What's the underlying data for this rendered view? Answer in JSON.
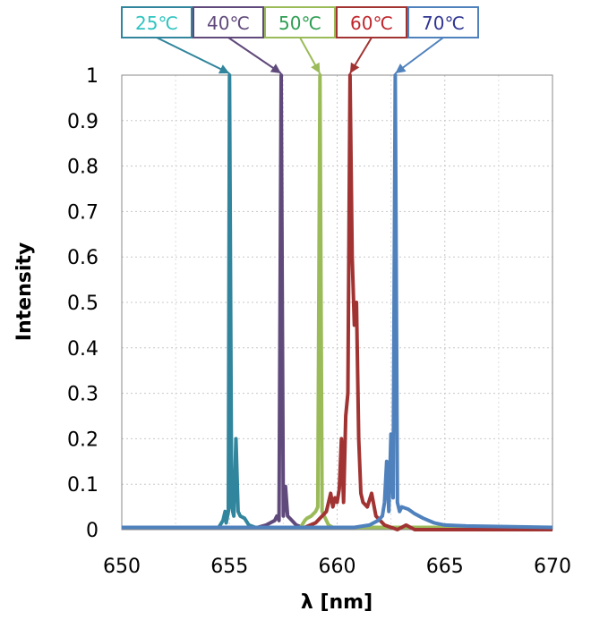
{
  "chart_data": {
    "type": "line",
    "xlabel": "λ [nm]",
    "ylabel": "Intensity",
    "xlim": [
      650,
      670
    ],
    "ylim": [
      0,
      1
    ],
    "x_ticks": [
      "650",
      "655",
      "660",
      "665",
      "670"
    ],
    "y_ticks": [
      "0",
      "0.1",
      "0.2",
      "0.3",
      "0.4",
      "0.5",
      "0.6",
      "0.7",
      "0.8",
      "0.9",
      "1"
    ],
    "grid": "dashed",
    "series": [
      {
        "name": "25℃",
        "color": "#31859c",
        "label_color": "#2fc4c0",
        "peak_wavelength": 655.0,
        "points": [
          [
            650,
            0.005
          ],
          [
            654.5,
            0.005
          ],
          [
            654.7,
            0.02
          ],
          [
            654.8,
            0.04
          ],
          [
            654.85,
            0.015
          ],
          [
            654.95,
            0.04
          ],
          [
            655.0,
            1.0
          ],
          [
            655.1,
            0.05
          ],
          [
            655.2,
            0.03
          ],
          [
            655.3,
            0.2
          ],
          [
            655.4,
            0.04
          ],
          [
            655.5,
            0.03
          ],
          [
            655.7,
            0.025
          ],
          [
            655.9,
            0.01
          ],
          [
            656.2,
            0.005
          ],
          [
            670,
            0.005
          ]
        ]
      },
      {
        "name": "40℃",
        "color": "#604a7b",
        "label_color": "#604a7b",
        "peak_wavelength": 657.4,
        "points": [
          [
            650,
            0.005
          ],
          [
            656.3,
            0.005
          ],
          [
            656.7,
            0.01
          ],
          [
            656.9,
            0.015
          ],
          [
            657.1,
            0.02
          ],
          [
            657.2,
            0.03
          ],
          [
            657.3,
            0.02
          ],
          [
            657.4,
            1.0
          ],
          [
            657.5,
            0.03
          ],
          [
            657.6,
            0.095
          ],
          [
            657.7,
            0.03
          ],
          [
            657.9,
            0.02
          ],
          [
            658.1,
            0.01
          ],
          [
            658.4,
            0.005
          ],
          [
            670,
            0.005
          ]
        ]
      },
      {
        "name": "50℃",
        "color": "#9bbb59",
        "label_color": "#2e9e53",
        "peak_wavelength": 659.2,
        "points": [
          [
            650,
            0.005
          ],
          [
            658.3,
            0.005
          ],
          [
            658.5,
            0.02
          ],
          [
            658.6,
            0.025
          ],
          [
            658.8,
            0.03
          ],
          [
            659.0,
            0.04
          ],
          [
            659.1,
            0.05
          ],
          [
            659.2,
            1.0
          ],
          [
            659.3,
            0.04
          ],
          [
            659.4,
            0.03
          ],
          [
            659.6,
            0.01
          ],
          [
            659.8,
            0.005
          ],
          [
            670,
            0.005
          ]
        ]
      },
      {
        "name": "60℃",
        "color": "#a13432",
        "label_color": "#c0262d",
        "peak_wavelength": 660.6,
        "points": [
          [
            650,
            0.005
          ],
          [
            658.5,
            0.005
          ],
          [
            659.0,
            0.015
          ],
          [
            659.5,
            0.04
          ],
          [
            659.7,
            0.08
          ],
          [
            659.8,
            0.05
          ],
          [
            659.9,
            0.07
          ],
          [
            660.0,
            0.06
          ],
          [
            660.1,
            0.09
          ],
          [
            660.2,
            0.2
          ],
          [
            660.3,
            0.06
          ],
          [
            660.4,
            0.25
          ],
          [
            660.5,
            0.3
          ],
          [
            660.6,
            1.0
          ],
          [
            660.7,
            0.6
          ],
          [
            660.8,
            0.45
          ],
          [
            660.9,
            0.5
          ],
          [
            661.0,
            0.2
          ],
          [
            661.1,
            0.08
          ],
          [
            661.2,
            0.06
          ],
          [
            661.4,
            0.05
          ],
          [
            661.6,
            0.08
          ],
          [
            661.8,
            0.03
          ],
          [
            662.2,
            0.01
          ],
          [
            662.8,
            0.0
          ],
          [
            663.2,
            0.01
          ],
          [
            663.6,
            0.0
          ],
          [
            670,
            0.0
          ]
        ]
      },
      {
        "name": "70℃",
        "color": "#4f81bd",
        "label_color": "#2f3592",
        "peak_wavelength": 662.7,
        "points": [
          [
            650,
            0.005
          ],
          [
            660.8,
            0.005
          ],
          [
            661.5,
            0.01
          ],
          [
            661.9,
            0.02
          ],
          [
            662.1,
            0.03
          ],
          [
            662.2,
            0.06
          ],
          [
            662.3,
            0.15
          ],
          [
            662.4,
            0.04
          ],
          [
            662.5,
            0.21
          ],
          [
            662.6,
            0.07
          ],
          [
            662.7,
            1.0
          ],
          [
            662.8,
            0.06
          ],
          [
            662.9,
            0.04
          ],
          [
            663.0,
            0.05
          ],
          [
            663.3,
            0.045
          ],
          [
            663.6,
            0.035
          ],
          [
            664.0,
            0.025
          ],
          [
            664.5,
            0.015
          ],
          [
            665.0,
            0.01
          ],
          [
            666.0,
            0.008
          ],
          [
            670,
            0.005
          ]
        ]
      }
    ]
  }
}
